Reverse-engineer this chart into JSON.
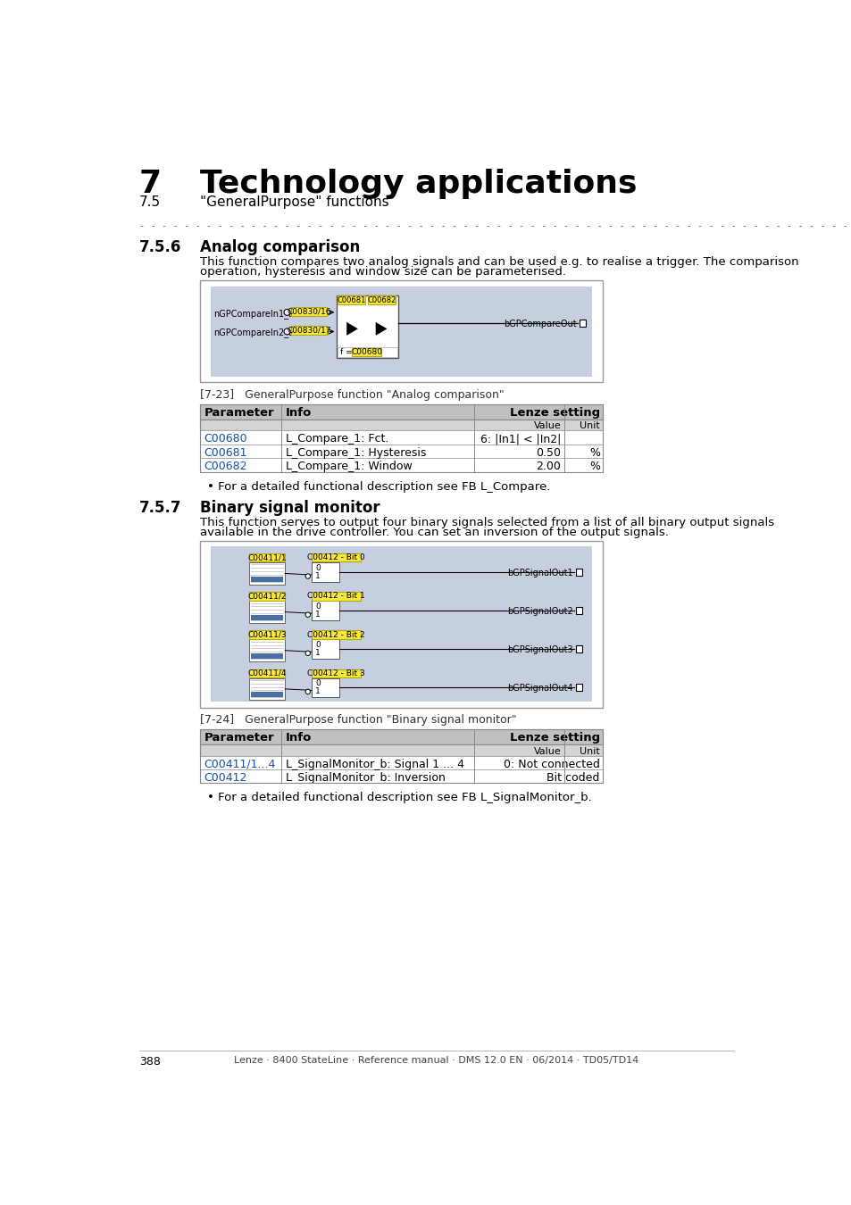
{
  "page_bg": "#ffffff",
  "page_num": "388",
  "footer_text": "Lenze · 8400 StateLine · Reference manual · DMS 12.0 EN · 06/2014 · TD05/TD14",
  "chapter_num": "7",
  "chapter_title": "Technology applications",
  "section_num": "7.5",
  "section_title": "\"GeneralPurpose\" functions",
  "section_756_num": "7.5.6",
  "section_756_title": "Analog comparison",
  "section_756_desc1": "This function compares two analog signals and can be used e.g. to realise a trigger. The comparison",
  "section_756_desc2": "operation, hysteresis and window size can be parameterised.",
  "fig_label_756": "[7-23]   GeneralPurpose function \"Analog comparison\"",
  "table1_rows": [
    [
      "C00680",
      "L_Compare_1: Fct.",
      "6: |In1| < |In2|",
      ""
    ],
    [
      "C00681",
      "L_Compare_1: Hysteresis",
      "0.50",
      "%"
    ],
    [
      "C00682",
      "L_Compare_1: Window",
      "2.00",
      "%"
    ]
  ],
  "section_757_num": "7.5.7",
  "section_757_title": "Binary signal monitor",
  "section_757_desc1": "This function serves to output four binary signals selected from a list of all binary output signals",
  "section_757_desc2": "available in the drive controller. You can set an inversion of the output signals.",
  "fig_label_757": "[7-24]   GeneralPurpose function \"Binary signal monitor\"",
  "table2_rows": [
    [
      "C00411/1...4",
      "L_SignalMonitor_b: Signal 1 ... 4",
      "0: Not connected",
      ""
    ],
    [
      "C00412",
      "L_SignalMonitor_b: Inversion",
      "Bit coded",
      ""
    ]
  ],
  "diagram_bg": "#c5cfe0",
  "yellow_bg": "#f5e642",
  "link_color": "#1a4f99"
}
